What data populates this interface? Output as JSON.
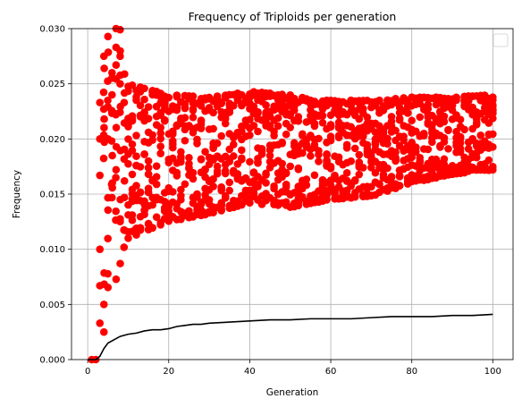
{
  "chart_data": {
    "type": "scatter",
    "title": "Frequency of Triploids per generation",
    "xlabel": "Generation",
    "ylabel": "Frequency",
    "xlim": [
      -4,
      105
    ],
    "ylim": [
      0,
      0.03
    ],
    "xticks": [
      0,
      20,
      40,
      60,
      80,
      100
    ],
    "yticks": [
      0.0,
      0.005,
      0.01,
      0.015,
      0.02,
      0.025,
      0.03
    ],
    "xtick_labels": [
      "0",
      "20",
      "40",
      "60",
      "80",
      "100"
    ],
    "ytick_labels": [
      "0.000",
      "0.005",
      "0.010",
      "0.015",
      "0.020",
      "0.025",
      "0.030"
    ],
    "grid": true,
    "legend": {
      "placement": "upper right",
      "entries": []
    },
    "colors": {
      "points": "#ff0000",
      "mean_line": "#000000"
    },
    "scatter_series": {
      "x_range": [
        0,
        100
      ],
      "point_count_per_generation": 14,
      "early_spread_points": [
        {
          "x": 1,
          "y": 0.0
        },
        {
          "x": 2,
          "y": 0.0
        },
        {
          "x": 3,
          "y": 0.0033
        },
        {
          "x": 3,
          "y": 0.0067
        },
        {
          "x": 3,
          "y": 0.01
        },
        {
          "x": 3,
          "y": 0.0167
        },
        {
          "x": 3,
          "y": 0.02
        },
        {
          "x": 3,
          "y": 0.0233
        },
        {
          "x": 4,
          "y": 0.0025
        },
        {
          "x": 4,
          "y": 0.005
        },
        {
          "x": 4,
          "y": 0.0275
        },
        {
          "x": 5,
          "y": 0.02
        },
        {
          "x": 6,
          "y": 0.024
        },
        {
          "x": 6,
          "y": 0.026
        },
        {
          "x": 7,
          "y": 0.0283
        },
        {
          "x": 7,
          "y": 0.0267
        },
        {
          "x": 7,
          "y": 0.03
        },
        {
          "x": 8,
          "y": 0.0275
        },
        {
          "x": 8,
          "y": 0.025
        },
        {
          "x": 9,
          "y": 0.0233
        }
      ],
      "band_low": [
        {
          "x": 10,
          "y": 0.011
        },
        {
          "x": 20,
          "y": 0.0125
        },
        {
          "x": 30,
          "y": 0.0132
        },
        {
          "x": 40,
          "y": 0.0142
        },
        {
          "x": 50,
          "y": 0.0138
        },
        {
          "x": 60,
          "y": 0.0145
        },
        {
          "x": 70,
          "y": 0.0148
        },
        {
          "x": 80,
          "y": 0.016
        },
        {
          "x": 90,
          "y": 0.0168
        },
        {
          "x": 100,
          "y": 0.0172
        }
      ],
      "band_high": [
        {
          "x": 10,
          "y": 0.025
        },
        {
          "x": 20,
          "y": 0.024
        },
        {
          "x": 30,
          "y": 0.0238
        },
        {
          "x": 40,
          "y": 0.0243
        },
        {
          "x": 50,
          "y": 0.024
        },
        {
          "x": 60,
          "y": 0.0235
        },
        {
          "x": 70,
          "y": 0.0235
        },
        {
          "x": 80,
          "y": 0.0238
        },
        {
          "x": 90,
          "y": 0.0238
        },
        {
          "x": 100,
          "y": 0.024
        }
      ]
    },
    "line_series": {
      "x": [
        0,
        1,
        2,
        3,
        4,
        5,
        6,
        7,
        8,
        9,
        10,
        12,
        14,
        16,
        18,
        20,
        22,
        24,
        26,
        28,
        30,
        35,
        40,
        45,
        50,
        55,
        60,
        65,
        70,
        75,
        80,
        85,
        90,
        95,
        100
      ],
      "y": [
        0.0,
        0.0,
        0.0,
        0.0003,
        0.001,
        0.0015,
        0.0017,
        0.0019,
        0.0021,
        0.0022,
        0.0023,
        0.0024,
        0.0026,
        0.0027,
        0.0027,
        0.0028,
        0.003,
        0.0031,
        0.0032,
        0.0032,
        0.0033,
        0.0034,
        0.0035,
        0.0036,
        0.0036,
        0.0037,
        0.0037,
        0.0037,
        0.0038,
        0.0039,
        0.0039,
        0.0039,
        0.004,
        0.004,
        0.0041
      ]
    }
  }
}
